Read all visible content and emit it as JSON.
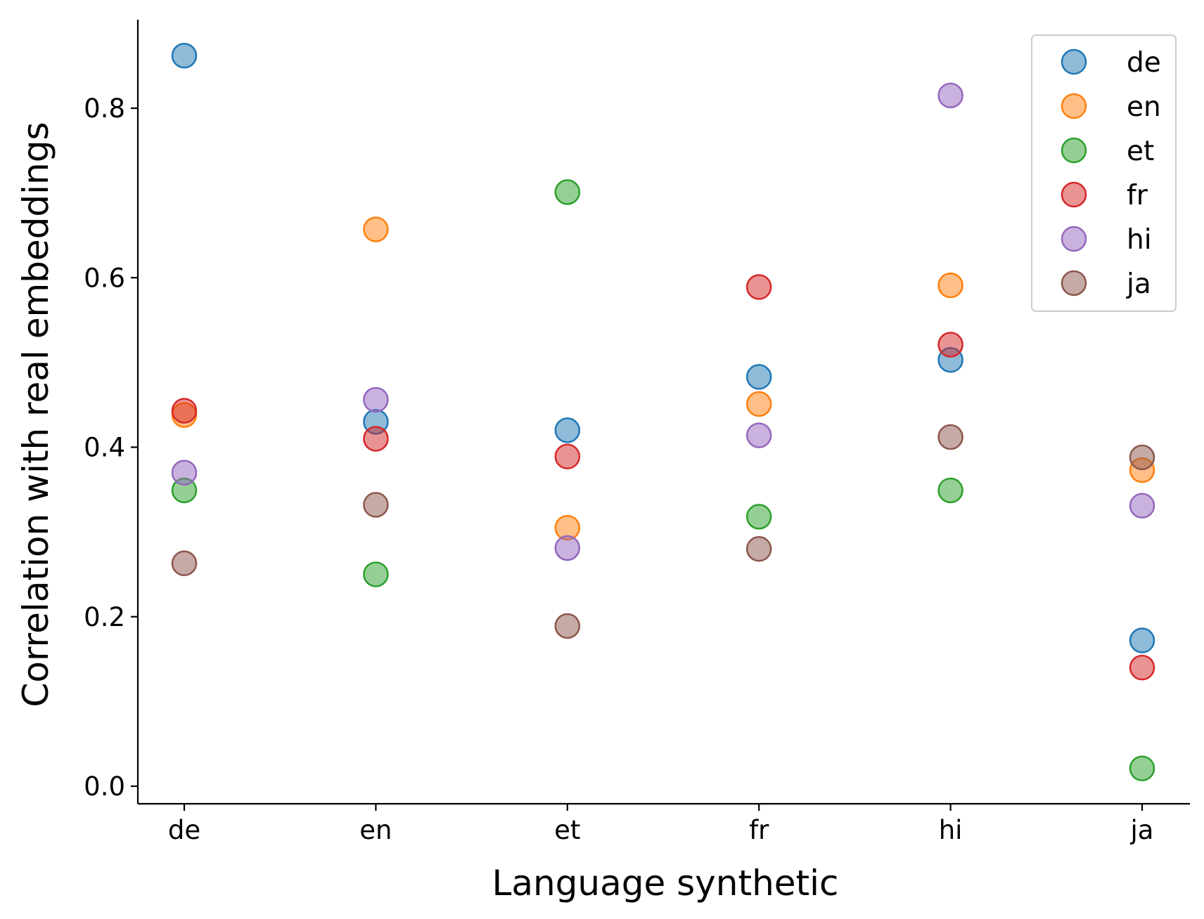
{
  "chart_data": {
    "type": "scatter",
    "title": "",
    "xlabel": "Language synthetic",
    "ylabel": "Correlation with real embeddings",
    "categories": [
      "de",
      "en",
      "et",
      "fr",
      "hi",
      "ja"
    ],
    "ylim": [
      -0.02,
      0.905
    ],
    "yticks": [
      0.0,
      0.2,
      0.4,
      0.6,
      0.8
    ],
    "ytick_labels": [
      "0.0",
      "0.2",
      "0.4",
      "0.6",
      "0.8"
    ],
    "grid": false,
    "legend_position": "top-right",
    "series": [
      {
        "name": "de",
        "color": "#1f77b4",
        "values": [
          0.862,
          0.43,
          0.42,
          0.483,
          0.503,
          0.172
        ]
      },
      {
        "name": "en",
        "color": "#ff7f0e",
        "values": [
          0.438,
          0.657,
          0.305,
          0.451,
          0.591,
          0.373
        ]
      },
      {
        "name": "et",
        "color": "#2ca02c",
        "values": [
          0.349,
          0.25,
          0.701,
          0.318,
          0.349,
          0.021
        ]
      },
      {
        "name": "fr",
        "color": "#d62728",
        "values": [
          0.443,
          0.41,
          0.389,
          0.589,
          0.521,
          0.14
        ]
      },
      {
        "name": "hi",
        "color": "#9467bd",
        "values": [
          0.37,
          0.456,
          0.281,
          0.414,
          0.815,
          0.331
        ]
      },
      {
        "name": "ja",
        "color": "#8c564b",
        "values": [
          0.263,
          0.332,
          0.189,
          0.28,
          0.412,
          0.388
        ]
      }
    ]
  }
}
